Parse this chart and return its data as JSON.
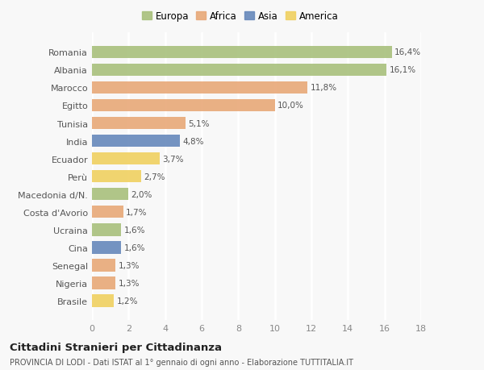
{
  "categories": [
    "Romania",
    "Albania",
    "Marocco",
    "Egitto",
    "Tunisia",
    "India",
    "Ecuador",
    "Perù",
    "Macedonia d/N.",
    "Costa d'Avorio",
    "Ucraina",
    "Cina",
    "Senegal",
    "Nigeria",
    "Brasile"
  ],
  "values": [
    16.4,
    16.1,
    11.8,
    10.0,
    5.1,
    4.8,
    3.7,
    2.7,
    2.0,
    1.7,
    1.6,
    1.6,
    1.3,
    1.3,
    1.2
  ],
  "labels": [
    "16,4%",
    "16,1%",
    "11,8%",
    "10,0%",
    "5,1%",
    "4,8%",
    "3,7%",
    "2,7%",
    "2,0%",
    "1,7%",
    "1,6%",
    "1,6%",
    "1,3%",
    "1,3%",
    "1,2%"
  ],
  "colors": [
    "#a8c07c",
    "#a8c07c",
    "#e8a878",
    "#e8a878",
    "#e8a878",
    "#6688bb",
    "#f0d060",
    "#f0d060",
    "#a8c07c",
    "#e8a878",
    "#a8c07c",
    "#6688bb",
    "#e8a878",
    "#e8a878",
    "#f0d060"
  ],
  "legend_labels": [
    "Europa",
    "Africa",
    "Asia",
    "America"
  ],
  "legend_colors": [
    "#a8c07c",
    "#e8a878",
    "#6688bb",
    "#f0d060"
  ],
  "title": "Cittadini Stranieri per Cittadinanza",
  "subtitle": "PROVINCIA DI LODI - Dati ISTAT al 1° gennaio di ogni anno - Elaborazione TUTTITALIA.IT",
  "xlim": [
    0,
    18
  ],
  "xticks": [
    0,
    2,
    4,
    6,
    8,
    10,
    12,
    14,
    16,
    18
  ],
  "bg_color": "#f8f8f8",
  "plot_bg_color": "#f8f8f8",
  "grid_color": "#ffffff",
  "bar_height": 0.7
}
